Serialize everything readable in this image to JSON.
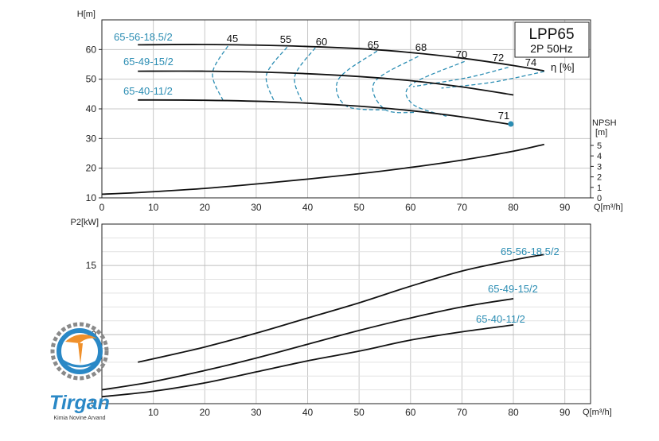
{
  "chart_data": [
    {
      "type": "line",
      "title": "LPP65",
      "subtitle": "2P 50Hz",
      "xlabel": "Q[m³/h]",
      "ylabel": "H[m]",
      "ylabel_right": "NPSH [m]",
      "xlim": [
        0,
        95
      ],
      "ylim": [
        10,
        70
      ],
      "xticks": [
        0,
        10,
        20,
        30,
        40,
        50,
        60,
        70,
        80,
        90
      ],
      "yticks": [
        10,
        20,
        30,
        40,
        50,
        60
      ],
      "npsh_ticks": [
        0,
        1,
        2,
        3,
        4,
        5
      ],
      "npsh_range": [
        0,
        5
      ],
      "grid": true,
      "series": [
        {
          "name": "65-56-18.5/2",
          "color": "#111111",
          "x": [
            7,
            20,
            35,
            50,
            60,
            70,
            80,
            86
          ],
          "y": [
            61.6,
            61.7,
            61.3,
            60.3,
            59.0,
            57.1,
            54.6,
            52.8
          ]
        },
        {
          "name": "65-49-15/2",
          "color": "#111111",
          "x": [
            7,
            20,
            35,
            50,
            60,
            70,
            80
          ],
          "y": [
            52.7,
            52.7,
            52.2,
            50.9,
            49.5,
            47.4,
            44.7
          ]
        },
        {
          "name": "65-40-11/2",
          "color": "#111111",
          "x": [
            7,
            20,
            35,
            50,
            60,
            70,
            80
          ],
          "y": [
            43.0,
            42.9,
            42.3,
            40.9,
            39.4,
            37.3,
            34.6
          ]
        },
        {
          "name": "NPSH",
          "color": "#111111",
          "axis": "npsh",
          "x": [
            0,
            7,
            20,
            35,
            50,
            60,
            70,
            80,
            86
          ],
          "y": [
            0.35,
            0.5,
            0.9,
            1.55,
            2.3,
            2.9,
            3.6,
            4.45,
            5.1
          ]
        }
      ],
      "efficiency_unit": "η [%]",
      "efficiency_labels": [
        "45",
        "55",
        "60",
        "65",
        "68",
        "70",
        "72",
        "74",
        "71"
      ],
      "efficiency_color": "#2b8db3",
      "efficiency_curves": [
        {
          "label": "45",
          "pts": [
            [
              24.5,
              61.2
            ],
            [
              21.5,
              52.0
            ],
            [
              23.5,
              43.0
            ]
          ]
        },
        {
          "label": "55",
          "pts": [
            [
              36.0,
              60.8
            ],
            [
              32.0,
              51.5
            ],
            [
              33.5,
              42.5
            ]
          ]
        },
        {
          "label": "60",
          "pts": [
            [
              41.5,
              60.6
            ],
            [
              37.5,
              51.0
            ],
            [
              39.0,
              42.0
            ]
          ]
        },
        {
          "label": "65",
          "pts": [
            [
              53.5,
              59.5
            ],
            [
              46.0,
              50.0
            ],
            [
              47.5,
              41.0
            ],
            [
              55.5,
              39.6
            ]
          ]
        },
        {
          "label": "68",
          "pts": [
            [
              61.5,
              57.7
            ],
            [
              53.0,
              49.0
            ],
            [
              55.0,
              39.8
            ],
            [
              61.0,
              38.8
            ]
          ]
        },
        {
          "label": "70",
          "pts": [
            [
              70.5,
              56.0
            ],
            [
              60.0,
              48.0
            ],
            [
              60.5,
              41.5
            ],
            [
              67.0,
              37.5
            ]
          ]
        },
        {
          "label": "72",
          "pts": [
            [
              79.0,
              54.0
            ],
            [
              71.0,
              50.5
            ],
            [
              60.5,
              47.5
            ]
          ]
        },
        {
          "label": "74",
          "pts": [
            [
              86.0,
              52.6
            ],
            [
              76.0,
              49.0
            ],
            [
              66.0,
              47.0
            ]
          ]
        }
      ],
      "marker": {
        "label": "71",
        "x": 79.5,
        "y": 34.9,
        "color": "#2b8db3"
      }
    },
    {
      "type": "line",
      "xlabel": "Q[m³/h]",
      "ylabel": "P2[kW]",
      "xlim": [
        0,
        95
      ],
      "ylim": [
        5,
        18
      ],
      "xticks": [
        0,
        10,
        20,
        30,
        40,
        50,
        60,
        70,
        80,
        90
      ],
      "yticks": [
        5,
        10,
        15
      ],
      "grid": true,
      "series": [
        {
          "name": "65-56-18.5/2",
          "color": "#111111",
          "x": [
            7,
            20,
            30,
            40,
            50,
            60,
            70,
            80,
            86
          ],
          "y": [
            8.0,
            9.1,
            10.1,
            11.2,
            12.3,
            13.5,
            14.6,
            15.4,
            15.8
          ]
        },
        {
          "name": "65-49-15/2",
          "color": "#111111",
          "x": [
            0,
            10,
            20,
            30,
            40,
            50,
            60,
            70,
            80
          ],
          "y": [
            6.0,
            6.6,
            7.4,
            8.3,
            9.3,
            10.3,
            11.2,
            12.0,
            12.6
          ]
        },
        {
          "name": "65-40-11/2",
          "color": "#111111",
          "x": [
            0,
            10,
            20,
            30,
            40,
            50,
            60,
            70,
            80
          ],
          "y": [
            5.5,
            5.9,
            6.5,
            7.3,
            8.1,
            8.8,
            9.6,
            10.2,
            10.7
          ]
        }
      ]
    }
  ],
  "logo": {
    "name": "Tirgan",
    "tagline": "Kimia Novine Arvand"
  }
}
